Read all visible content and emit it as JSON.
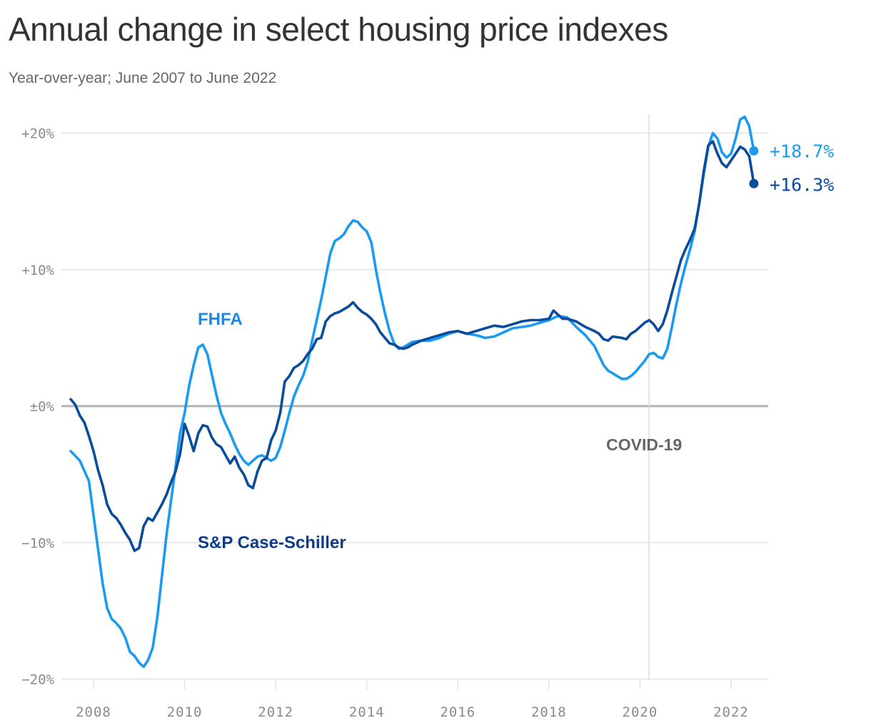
{
  "title": "Annual change in select housing price indexes",
  "subtitle": "Year-over-year; June 2007 to June 2022",
  "colors": {
    "fhfa": "#1b9bf0",
    "case_shiller": "#0a4c9c",
    "fhfa_label": "#1e88e5",
    "case_shiller_label": "#0d3d8a",
    "grid": "#e3e3e3",
    "zero_line": "#b3b3b3",
    "axis_text": "#8a8a8a",
    "covid_line": "#dcdcdc",
    "covid_text": "#666666"
  },
  "chart_data": {
    "type": "line",
    "xlim": [
      2007.0,
      2022.8
    ],
    "ylim": [
      -20,
      21.5
    ],
    "x_ticks": [
      2008,
      2010,
      2012,
      2014,
      2016,
      2018,
      2020,
      2022
    ],
    "x_tick_labels": [
      "2008",
      "2010",
      "2012",
      "2014",
      "2016",
      "2018",
      "2020",
      "2022"
    ],
    "y_ticks": [
      20,
      10,
      0,
      -10,
      -20
    ],
    "y_tick_labels": [
      "+20%",
      "+10%",
      "±0%",
      "−10%",
      "−20%"
    ],
    "grid": true,
    "annotations": [
      {
        "text": "COVID-19",
        "x": 2020.2
      }
    ],
    "series": [
      {
        "name": "FHFA",
        "end_label": "+18.7%",
        "points": [
          [
            2007.5,
            -3.3
          ],
          [
            2007.7,
            -4.0
          ],
          [
            2007.9,
            -5.5
          ],
          [
            2008.0,
            -8.0
          ],
          [
            2008.1,
            -10.5
          ],
          [
            2008.2,
            -13.0
          ],
          [
            2008.3,
            -14.8
          ],
          [
            2008.4,
            -15.6
          ],
          [
            2008.5,
            -15.9
          ],
          [
            2008.6,
            -16.3
          ],
          [
            2008.7,
            -17.0
          ],
          [
            2008.8,
            -18.0
          ],
          [
            2008.9,
            -18.3
          ],
          [
            2009.0,
            -18.8
          ],
          [
            2009.1,
            -19.1
          ],
          [
            2009.2,
            -18.6
          ],
          [
            2009.3,
            -17.7
          ],
          [
            2009.4,
            -15.5
          ],
          [
            2009.5,
            -12.5
          ],
          [
            2009.6,
            -9.5
          ],
          [
            2009.7,
            -7.0
          ],
          [
            2009.8,
            -4.5
          ],
          [
            2009.9,
            -2.0
          ],
          [
            2010.0,
            -0.5
          ],
          [
            2010.1,
            1.5
          ],
          [
            2010.2,
            3.0
          ],
          [
            2010.3,
            4.3
          ],
          [
            2010.4,
            4.5
          ],
          [
            2010.5,
            3.8
          ],
          [
            2010.6,
            2.3
          ],
          [
            2010.7,
            0.8
          ],
          [
            2010.8,
            -0.5
          ],
          [
            2010.9,
            -1.3
          ],
          [
            2011.0,
            -2.0
          ],
          [
            2011.1,
            -2.8
          ],
          [
            2011.2,
            -3.5
          ],
          [
            2011.3,
            -4.0
          ],
          [
            2011.4,
            -4.3
          ],
          [
            2011.5,
            -4.0
          ],
          [
            2011.6,
            -3.7
          ],
          [
            2011.7,
            -3.6
          ],
          [
            2011.8,
            -3.8
          ],
          [
            2011.9,
            -4.0
          ],
          [
            2012.0,
            -3.8
          ],
          [
            2012.1,
            -3.0
          ],
          [
            2012.2,
            -1.8
          ],
          [
            2012.3,
            -0.5
          ],
          [
            2012.4,
            0.7
          ],
          [
            2012.5,
            1.5
          ],
          [
            2012.6,
            2.2
          ],
          [
            2012.7,
            3.2
          ],
          [
            2012.8,
            4.8
          ],
          [
            2012.9,
            6.3
          ],
          [
            2013.0,
            7.8
          ],
          [
            2013.1,
            9.5
          ],
          [
            2013.2,
            11.2
          ],
          [
            2013.3,
            12.1
          ],
          [
            2013.4,
            12.3
          ],
          [
            2013.5,
            12.6
          ],
          [
            2013.6,
            13.2
          ],
          [
            2013.7,
            13.6
          ],
          [
            2013.8,
            13.5
          ],
          [
            2013.9,
            13.1
          ],
          [
            2014.0,
            12.8
          ],
          [
            2014.1,
            12.0
          ],
          [
            2014.2,
            10.0
          ],
          [
            2014.3,
            8.3
          ],
          [
            2014.4,
            6.8
          ],
          [
            2014.5,
            5.5
          ],
          [
            2014.6,
            4.6
          ],
          [
            2014.7,
            4.2
          ],
          [
            2014.8,
            4.3
          ],
          [
            2014.9,
            4.5
          ],
          [
            2015.0,
            4.7
          ],
          [
            2015.2,
            4.8
          ],
          [
            2015.4,
            4.8
          ],
          [
            2015.6,
            5.0
          ],
          [
            2015.8,
            5.3
          ],
          [
            2016.0,
            5.5
          ],
          [
            2016.2,
            5.3
          ],
          [
            2016.4,
            5.2
          ],
          [
            2016.6,
            5.0
          ],
          [
            2016.8,
            5.1
          ],
          [
            2017.0,
            5.4
          ],
          [
            2017.2,
            5.7
          ],
          [
            2017.4,
            5.8
          ],
          [
            2017.6,
            5.9
          ],
          [
            2017.8,
            6.1
          ],
          [
            2018.0,
            6.3
          ],
          [
            2018.2,
            6.6
          ],
          [
            2018.4,
            6.5
          ],
          [
            2018.6,
            5.8
          ],
          [
            2018.8,
            5.2
          ],
          [
            2019.0,
            4.4
          ],
          [
            2019.1,
            3.7
          ],
          [
            2019.2,
            3.0
          ],
          [
            2019.3,
            2.6
          ],
          [
            2019.4,
            2.4
          ],
          [
            2019.5,
            2.2
          ],
          [
            2019.6,
            2.0
          ],
          [
            2019.7,
            2.0
          ],
          [
            2019.8,
            2.2
          ],
          [
            2019.9,
            2.5
          ],
          [
            2020.0,
            2.9
          ],
          [
            2020.1,
            3.3
          ],
          [
            2020.2,
            3.8
          ],
          [
            2020.3,
            3.9
          ],
          [
            2020.4,
            3.6
          ],
          [
            2020.5,
            3.5
          ],
          [
            2020.6,
            4.2
          ],
          [
            2020.7,
            5.8
          ],
          [
            2020.8,
            7.5
          ],
          [
            2020.9,
            9.0
          ],
          [
            2021.0,
            10.3
          ],
          [
            2021.1,
            11.5
          ],
          [
            2021.2,
            12.8
          ],
          [
            2021.3,
            14.8
          ],
          [
            2021.4,
            17.0
          ],
          [
            2021.5,
            19.0
          ],
          [
            2021.6,
            20.0
          ],
          [
            2021.7,
            19.6
          ],
          [
            2021.8,
            18.6
          ],
          [
            2021.9,
            18.2
          ],
          [
            2022.0,
            18.5
          ],
          [
            2022.1,
            19.6
          ],
          [
            2022.2,
            21.0
          ],
          [
            2022.3,
            21.2
          ],
          [
            2022.4,
            20.5
          ],
          [
            2022.5,
            18.7
          ]
        ]
      },
      {
        "name": "S&P Case-Schiller",
        "end_label": "+16.3%",
        "points": [
          [
            2007.5,
            0.5
          ],
          [
            2007.6,
            0.1
          ],
          [
            2007.7,
            -0.7
          ],
          [
            2007.8,
            -1.2
          ],
          [
            2007.9,
            -2.2
          ],
          [
            2008.0,
            -3.3
          ],
          [
            2008.1,
            -4.7
          ],
          [
            2008.2,
            -5.8
          ],
          [
            2008.3,
            -7.2
          ],
          [
            2008.4,
            -7.9
          ],
          [
            2008.5,
            -8.2
          ],
          [
            2008.6,
            -8.7
          ],
          [
            2008.7,
            -9.3
          ],
          [
            2008.8,
            -9.8
          ],
          [
            2008.9,
            -10.6
          ],
          [
            2009.0,
            -10.4
          ],
          [
            2009.1,
            -8.8
          ],
          [
            2009.2,
            -8.2
          ],
          [
            2009.3,
            -8.4
          ],
          [
            2009.4,
            -7.8
          ],
          [
            2009.5,
            -7.2
          ],
          [
            2009.6,
            -6.5
          ],
          [
            2009.7,
            -5.6
          ],
          [
            2009.8,
            -4.8
          ],
          [
            2009.9,
            -3.5
          ],
          [
            2010.0,
            -1.3
          ],
          [
            2010.1,
            -2.2
          ],
          [
            2010.2,
            -3.3
          ],
          [
            2010.3,
            -2.0
          ],
          [
            2010.4,
            -1.4
          ],
          [
            2010.5,
            -1.5
          ],
          [
            2010.6,
            -2.3
          ],
          [
            2010.7,
            -2.8
          ],
          [
            2010.8,
            -3.0
          ],
          [
            2010.9,
            -3.6
          ],
          [
            2011.0,
            -4.2
          ],
          [
            2011.1,
            -3.7
          ],
          [
            2011.2,
            -4.5
          ],
          [
            2011.3,
            -5.0
          ],
          [
            2011.4,
            -5.8
          ],
          [
            2011.5,
            -6.0
          ],
          [
            2011.6,
            -4.8
          ],
          [
            2011.7,
            -4.0
          ],
          [
            2011.8,
            -3.8
          ],
          [
            2011.9,
            -2.5
          ],
          [
            2012.0,
            -1.8
          ],
          [
            2012.1,
            -0.5
          ],
          [
            2012.2,
            1.8
          ],
          [
            2012.3,
            2.2
          ],
          [
            2012.4,
            2.8
          ],
          [
            2012.5,
            3.0
          ],
          [
            2012.6,
            3.3
          ],
          [
            2012.7,
            3.8
          ],
          [
            2012.8,
            4.2
          ],
          [
            2012.9,
            4.9
          ],
          [
            2013.0,
            5.0
          ],
          [
            2013.1,
            6.2
          ],
          [
            2013.2,
            6.6
          ],
          [
            2013.3,
            6.8
          ],
          [
            2013.4,
            6.9
          ],
          [
            2013.5,
            7.1
          ],
          [
            2013.6,
            7.3
          ],
          [
            2013.7,
            7.6
          ],
          [
            2013.8,
            7.2
          ],
          [
            2013.9,
            6.9
          ],
          [
            2014.0,
            6.7
          ],
          [
            2014.1,
            6.4
          ],
          [
            2014.2,
            6.0
          ],
          [
            2014.3,
            5.4
          ],
          [
            2014.4,
            5.0
          ],
          [
            2014.5,
            4.6
          ],
          [
            2014.6,
            4.5
          ],
          [
            2014.7,
            4.3
          ],
          [
            2014.8,
            4.2
          ],
          [
            2014.9,
            4.3
          ],
          [
            2015.0,
            4.5
          ],
          [
            2015.2,
            4.8
          ],
          [
            2015.4,
            5.0
          ],
          [
            2015.6,
            5.2
          ],
          [
            2015.8,
            5.4
          ],
          [
            2016.0,
            5.5
          ],
          [
            2016.2,
            5.3
          ],
          [
            2016.4,
            5.5
          ],
          [
            2016.6,
            5.7
          ],
          [
            2016.8,
            5.9
          ],
          [
            2017.0,
            5.8
          ],
          [
            2017.2,
            6.0
          ],
          [
            2017.4,
            6.2
          ],
          [
            2017.6,
            6.3
          ],
          [
            2017.8,
            6.3
          ],
          [
            2018.0,
            6.4
          ],
          [
            2018.1,
            7.0
          ],
          [
            2018.2,
            6.7
          ],
          [
            2018.3,
            6.4
          ],
          [
            2018.4,
            6.4
          ],
          [
            2018.6,
            6.2
          ],
          [
            2018.8,
            5.8
          ],
          [
            2019.0,
            5.5
          ],
          [
            2019.1,
            5.3
          ],
          [
            2019.2,
            4.9
          ],
          [
            2019.3,
            4.8
          ],
          [
            2019.4,
            5.1
          ],
          [
            2019.6,
            5.0
          ],
          [
            2019.7,
            4.9
          ],
          [
            2019.8,
            5.3
          ],
          [
            2019.9,
            5.5
          ],
          [
            2020.0,
            5.8
          ],
          [
            2020.1,
            6.1
          ],
          [
            2020.2,
            6.3
          ],
          [
            2020.3,
            6.0
          ],
          [
            2020.4,
            5.5
          ],
          [
            2020.5,
            6.0
          ],
          [
            2020.6,
            7.0
          ],
          [
            2020.7,
            8.3
          ],
          [
            2020.8,
            9.5
          ],
          [
            2020.9,
            10.7
          ],
          [
            2021.0,
            11.5
          ],
          [
            2021.1,
            12.2
          ],
          [
            2021.2,
            13.0
          ],
          [
            2021.3,
            14.8
          ],
          [
            2021.4,
            17.2
          ],
          [
            2021.5,
            19.1
          ],
          [
            2021.6,
            19.4
          ],
          [
            2021.7,
            18.5
          ],
          [
            2021.8,
            17.8
          ],
          [
            2021.9,
            17.5
          ],
          [
            2022.0,
            18.0
          ],
          [
            2022.1,
            18.5
          ],
          [
            2022.2,
            19.0
          ],
          [
            2022.3,
            18.8
          ],
          [
            2022.4,
            18.3
          ],
          [
            2022.5,
            16.3
          ]
        ]
      }
    ]
  }
}
